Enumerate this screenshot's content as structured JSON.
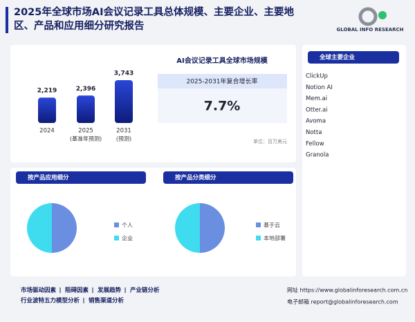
{
  "header": {
    "title_lines": [
      "2025年全球市场AI会议记录工具总体规模、主要企业、主要地",
      "区、产品和应用细分研究报告"
    ],
    "logo": "GLOBAL INFO RESEARCH"
  },
  "market": {
    "title": "AI会议记录工具全球市场规模",
    "cagr_label": "2025-2031年复合增长率",
    "cagr": "7.7%",
    "unit": "单位：百万美元"
  },
  "companies": {
    "title": "全球主要企业",
    "items": [
      "ClickUp",
      "Notion AI",
      "Mem.ai",
      "Otter.ai",
      "Avoma",
      "Notta",
      "Fellow",
      "Granola"
    ]
  },
  "chart_data": [
    {
      "type": "bar",
      "categories": [
        "2024",
        "2025",
        "2031"
      ],
      "category_notes": [
        null,
        "(基准年预测)",
        "(预测)"
      ],
      "values": [
        2219,
        2396,
        3743
      ],
      "value_labels": [
        "2,219",
        "2,396",
        "3,743"
      ],
      "color": "#1a2fa0"
    },
    {
      "type": "pie",
      "title": "按产品应用细分",
      "categories": [
        "个人",
        "企业"
      ],
      "values": [
        50,
        50
      ],
      "colors": [
        "#6a8ee0",
        "#3fdcf0"
      ]
    },
    {
      "type": "pie",
      "title": "按产品分类细分",
      "categories": [
        "基于云",
        "本地部署"
      ],
      "values": [
        50,
        50
      ],
      "colors": [
        "#6a8ee0",
        "#3fdcf0"
      ]
    }
  ],
  "footer": {
    "links": [
      [
        "市场驱动因素",
        "阻碍因素",
        "发展趋势",
        "产业链分析"
      ],
      [
        "行业波特五力模型分析",
        "销售渠道分析"
      ]
    ],
    "contact": [
      "网址 https://www.globalinforesearch.com.cn",
      "电子邮箱 report@globalinforesearch.com"
    ]
  }
}
